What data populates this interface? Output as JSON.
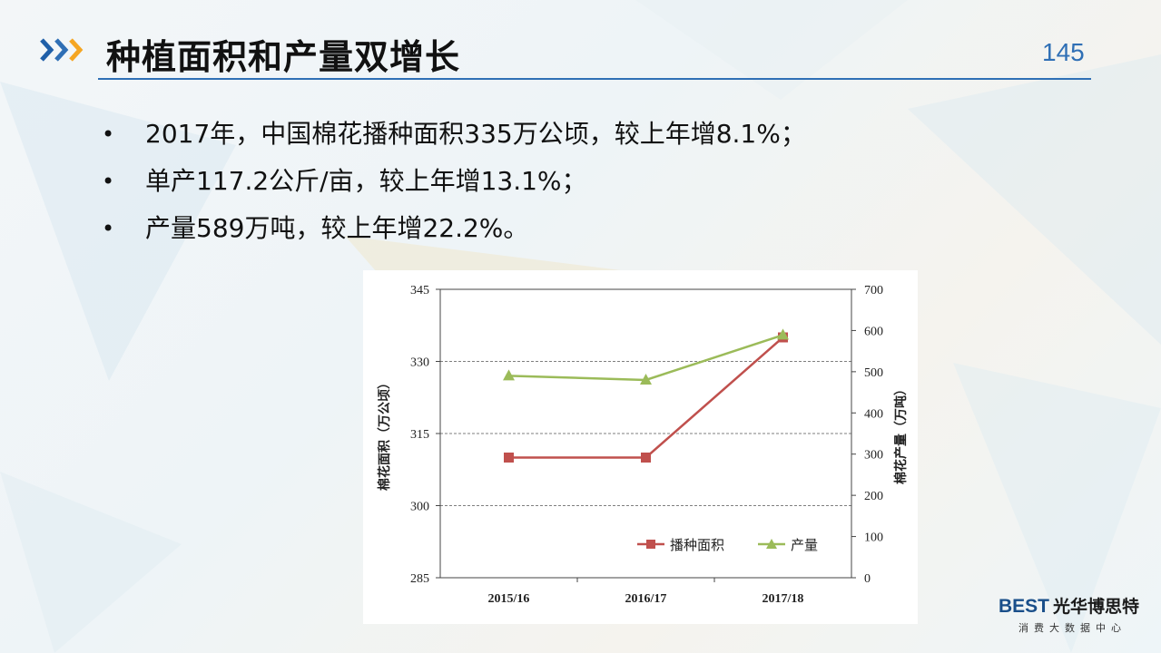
{
  "header": {
    "title": "种植面积和产量双增长",
    "page_number": "145",
    "accent_color": "#2f6fb5",
    "chevron_colors": [
      "#1f5fa8",
      "#2f6fb5",
      "#f5a623"
    ]
  },
  "bullets": [
    "2017年，中国棉花播种面积335万公顷，较上年增8.1%；",
    "单产117.2公斤/亩，较上年增13.1%；",
    "产量589万吨，较上年增22.2%。"
  ],
  "bullet_symbol": "•",
  "chart_data": {
    "type": "line",
    "categories": [
      "2015/16",
      "2016/17",
      "2017/18"
    ],
    "series": [
      {
        "name": "播种面积",
        "axis": "left",
        "values": [
          310,
          310,
          335
        ],
        "color": "#c0504d",
        "marker": "square"
      },
      {
        "name": "产量",
        "axis": "right",
        "values": [
          490,
          480,
          589
        ],
        "color": "#9bbb59",
        "marker": "triangle"
      }
    ],
    "ylabel_left": "棉花面积（万公顷）",
    "ylabel_right": "棉花产量（万吨）",
    "ylim_left": [
      285,
      345
    ],
    "yticks_left": [
      "285",
      "300",
      "315",
      "330",
      "345"
    ],
    "ylim_right": [
      0,
      700
    ],
    "yticks_right": [
      "0",
      "100",
      "200",
      "300",
      "400",
      "500",
      "600",
      "700"
    ],
    "grid": "dashed-horizontal",
    "legend_position": "bottom-right"
  },
  "logo": {
    "brand_en": "BEST",
    "brand_cn": "光华博思特",
    "tagline": "消费大数据中心"
  }
}
